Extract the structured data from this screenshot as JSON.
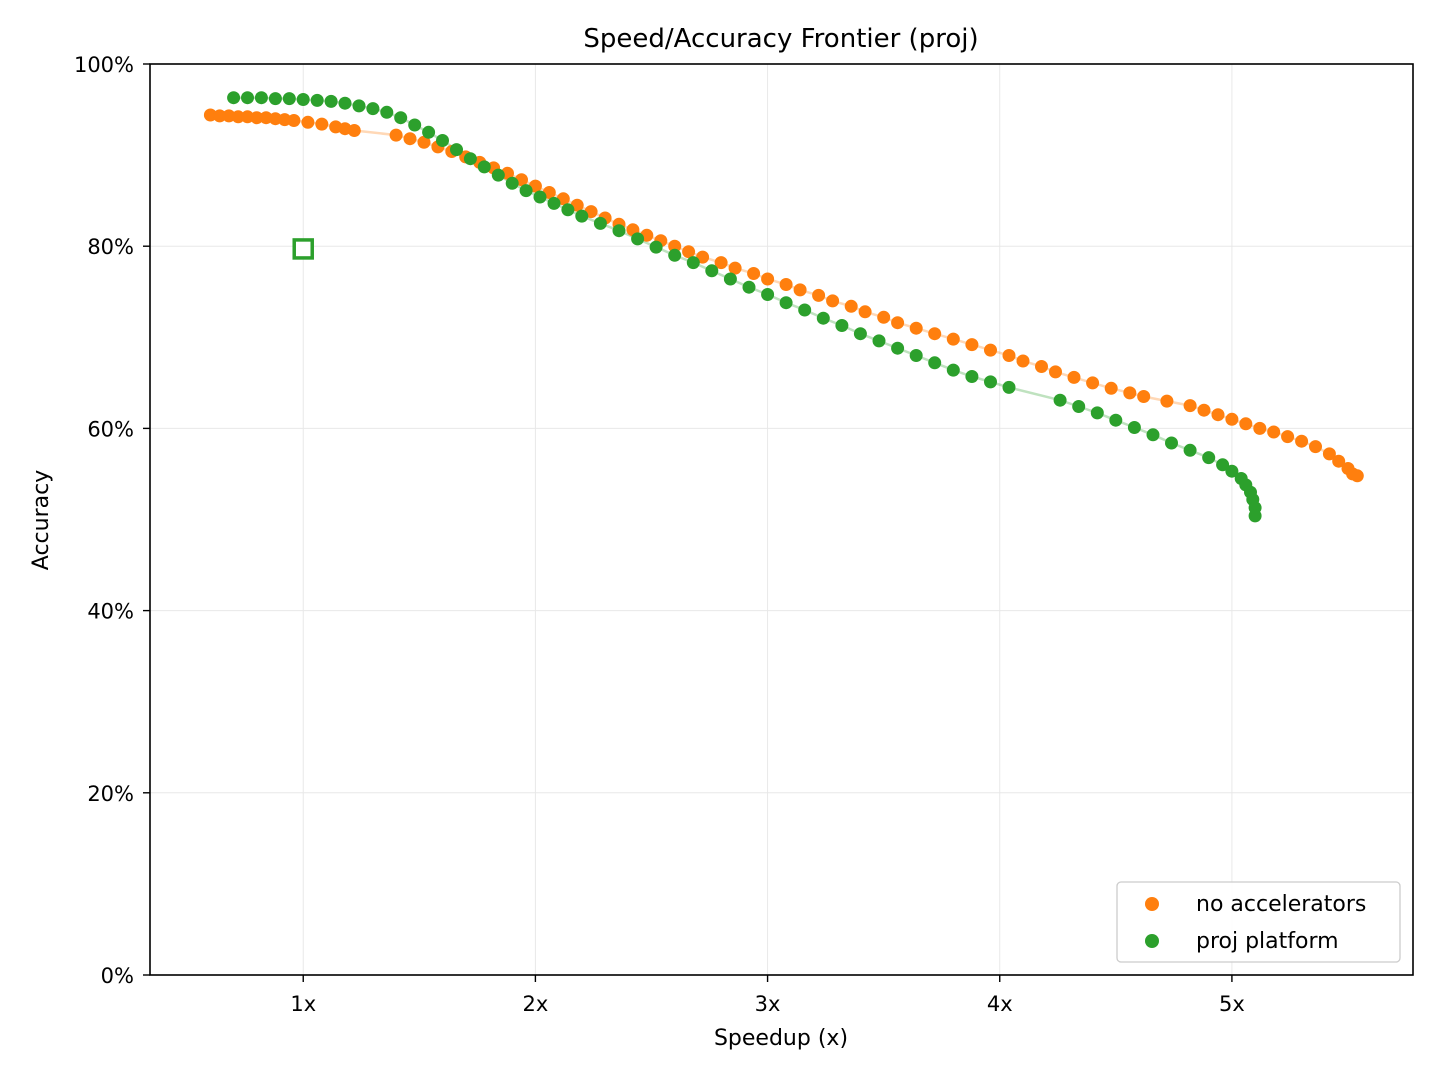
{
  "chart_data": {
    "type": "scatter",
    "title": "Speed/Accuracy Frontier (proj)",
    "xlabel": "Speedup (x)",
    "ylabel": "Accuracy",
    "xlim": [
      0.34,
      5.78
    ],
    "ylim": [
      0,
      100
    ],
    "x_ticks": [
      {
        "value": 1,
        "label": "1x"
      },
      {
        "value": 2,
        "label": "2x"
      },
      {
        "value": 3,
        "label": "3x"
      },
      {
        "value": 4,
        "label": "4x"
      },
      {
        "value": 5,
        "label": "5x"
      }
    ],
    "y_ticks": [
      {
        "value": 0,
        "label": "0%"
      },
      {
        "value": 20,
        "label": "20%"
      },
      {
        "value": 40,
        "label": "40%"
      },
      {
        "value": 60,
        "label": "60%"
      },
      {
        "value": 80,
        "label": "80%"
      },
      {
        "value": 100,
        "label": "100%"
      }
    ],
    "grid": true,
    "legend_position": "bottom-right",
    "series": [
      {
        "name": "no accelerators",
        "color": "#ff7f0e",
        "x": [
          0.6,
          0.64,
          0.68,
          0.72,
          0.76,
          0.8,
          0.84,
          0.88,
          0.92,
          0.96,
          1.02,
          1.08,
          1.14,
          1.18,
          1.22,
          1.4,
          1.46,
          1.52,
          1.58,
          1.64,
          1.7,
          1.76,
          1.82,
          1.88,
          1.94,
          2.0,
          2.06,
          2.12,
          2.18,
          2.24,
          2.3,
          2.36,
          2.42,
          2.48,
          2.54,
          2.6,
          2.66,
          2.72,
          2.8,
          2.86,
          2.94,
          3.0,
          3.08,
          3.14,
          3.22,
          3.28,
          3.36,
          3.42,
          3.5,
          3.56,
          3.64,
          3.72,
          3.8,
          3.88,
          3.96,
          4.04,
          4.1,
          4.18,
          4.24,
          4.32,
          4.4,
          4.48,
          4.56,
          4.62,
          4.72,
          4.82,
          4.88,
          4.94,
          5.0,
          5.06,
          5.12,
          5.18,
          5.24,
          5.3,
          5.36,
          5.42,
          5.46,
          5.5,
          5.52,
          5.54
        ],
        "y": [
          94.4,
          94.3,
          94.3,
          94.2,
          94.2,
          94.1,
          94.1,
          94.0,
          93.9,
          93.8,
          93.6,
          93.4,
          93.1,
          92.9,
          92.7,
          92.2,
          91.8,
          91.4,
          90.9,
          90.4,
          89.8,
          89.2,
          88.6,
          88.0,
          87.3,
          86.6,
          85.9,
          85.2,
          84.5,
          83.8,
          83.1,
          82.4,
          81.8,
          81.2,
          80.6,
          80.0,
          79.4,
          78.8,
          78.2,
          77.6,
          77.0,
          76.4,
          75.8,
          75.2,
          74.6,
          74.0,
          73.4,
          72.8,
          72.2,
          71.6,
          71.0,
          70.4,
          69.8,
          69.2,
          68.6,
          68.0,
          67.4,
          66.8,
          66.2,
          65.6,
          65.0,
          64.4,
          63.9,
          63.5,
          63.0,
          62.5,
          62.0,
          61.5,
          61.0,
          60.5,
          60.0,
          59.6,
          59.1,
          58.6,
          58.0,
          57.2,
          56.4,
          55.6,
          55.0,
          54.8
        ]
      },
      {
        "name": "proj platform",
        "color": "#2ca02c",
        "x": [
          0.7,
          0.76,
          0.82,
          0.88,
          0.94,
          1.0,
          1.06,
          1.12,
          1.18,
          1.24,
          1.3,
          1.36,
          1.42,
          1.48,
          1.54,
          1.6,
          1.66,
          1.72,
          1.78,
          1.84,
          1.9,
          1.96,
          2.02,
          2.08,
          2.14,
          2.2,
          2.28,
          2.36,
          2.44,
          2.52,
          2.6,
          2.68,
          2.76,
          2.84,
          2.92,
          3.0,
          3.08,
          3.16,
          3.24,
          3.32,
          3.4,
          3.48,
          3.56,
          3.64,
          3.72,
          3.8,
          3.88,
          3.96,
          4.04,
          4.26,
          4.34,
          4.42,
          4.5,
          4.58,
          4.66,
          4.74,
          4.82,
          4.9,
          4.96,
          5.0,
          5.04,
          5.06,
          5.08,
          5.09,
          5.1,
          5.1
        ],
        "y": [
          96.3,
          96.3,
          96.3,
          96.2,
          96.2,
          96.1,
          96.0,
          95.9,
          95.7,
          95.4,
          95.1,
          94.7,
          94.1,
          93.3,
          92.5,
          91.6,
          90.6,
          89.6,
          88.7,
          87.8,
          86.9,
          86.1,
          85.4,
          84.7,
          84.0,
          83.3,
          82.5,
          81.7,
          80.8,
          79.9,
          79.0,
          78.2,
          77.3,
          76.4,
          75.5,
          74.7,
          73.8,
          73.0,
          72.1,
          71.3,
          70.4,
          69.6,
          68.8,
          68.0,
          67.2,
          66.4,
          65.7,
          65.1,
          64.5,
          63.1,
          62.4,
          61.7,
          60.9,
          60.1,
          59.3,
          58.4,
          57.6,
          56.8,
          56.0,
          55.3,
          54.5,
          53.8,
          53.0,
          52.2,
          51.3,
          50.4
        ]
      }
    ],
    "baseline_marker": {
      "x": 1.0,
      "y": 79.7,
      "color": "#2ca02c",
      "shape": "hollow-square"
    }
  }
}
